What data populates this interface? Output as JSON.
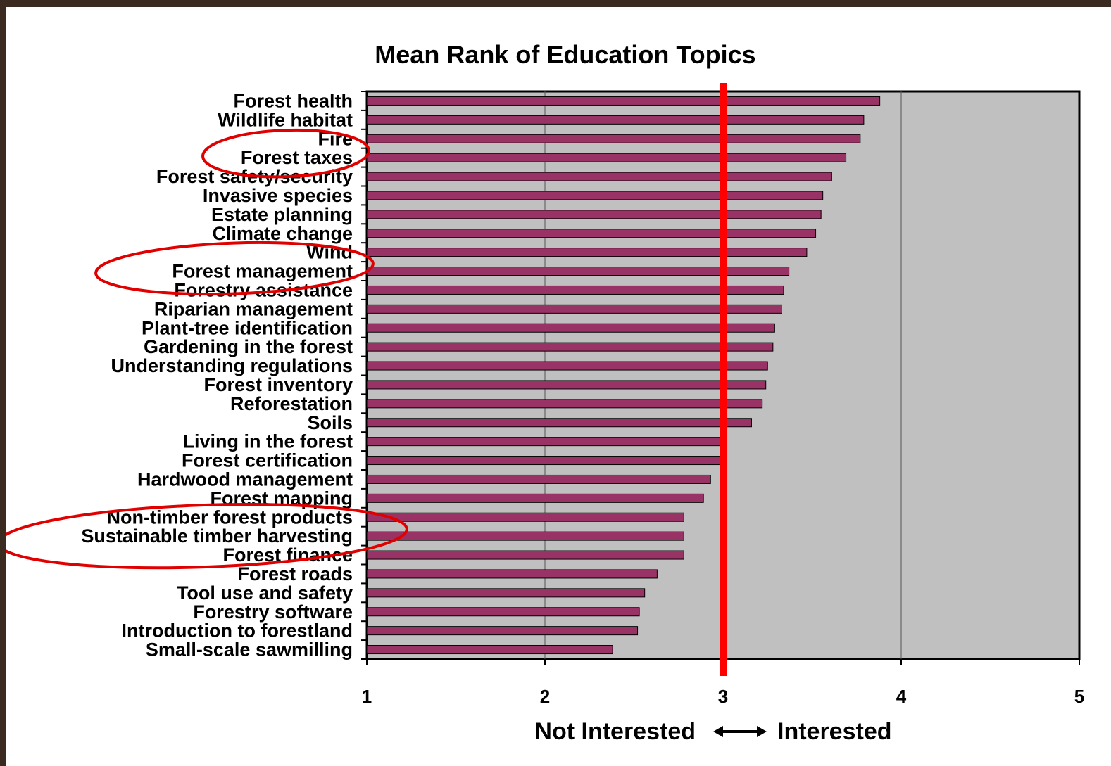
{
  "chart_data": {
    "type": "bar",
    "orientation": "horizontal",
    "title": "Mean Rank of Education Topics",
    "xlabel_left": "Not Interested",
    "xlabel_right": "Interested",
    "xlim": [
      1,
      5
    ],
    "xticks": [
      "1",
      "2",
      "3",
      "4",
      "5"
    ],
    "grid": true,
    "reference_line": 3,
    "colors": {
      "bar": "#993366",
      "plot_background": "#c0c0c0",
      "reference_line": "#ff0000",
      "highlight_ellipse": "#e00000"
    },
    "categories": [
      "Forest health",
      "Wildlife habitat",
      "Fire",
      "Forest taxes",
      "Forest safety/security",
      "Invasive species",
      "Estate planning",
      "Climate change",
      "Wind",
      "Forest management",
      "Forestry assistance",
      "Riparian management",
      "Plant-tree identification",
      "Gardening in the forest",
      "Understanding regulations",
      "Forest inventory",
      "Reforestation",
      "Soils",
      "Living in the forest",
      "Forest certification",
      "Hardwood management",
      "Forest mapping",
      "Non-timber forest products",
      "Sustainable timber harvesting",
      "Forest finance",
      "Forest roads",
      "Tool use and safety",
      "Forestry software",
      "Introduction to forestland",
      "Small-scale sawmilling"
    ],
    "values": [
      3.88,
      3.79,
      3.77,
      3.69,
      3.61,
      3.56,
      3.55,
      3.52,
      3.47,
      3.37,
      3.34,
      3.33,
      3.29,
      3.28,
      3.25,
      3.24,
      3.22,
      3.16,
      3.0,
      3.0,
      2.93,
      2.89,
      2.78,
      2.78,
      2.78,
      2.63,
      2.56,
      2.53,
      2.52,
      2.38
    ],
    "highlighted": [
      "Forest taxes",
      "Forest management",
      "Sustainable timber harvesting"
    ]
  }
}
